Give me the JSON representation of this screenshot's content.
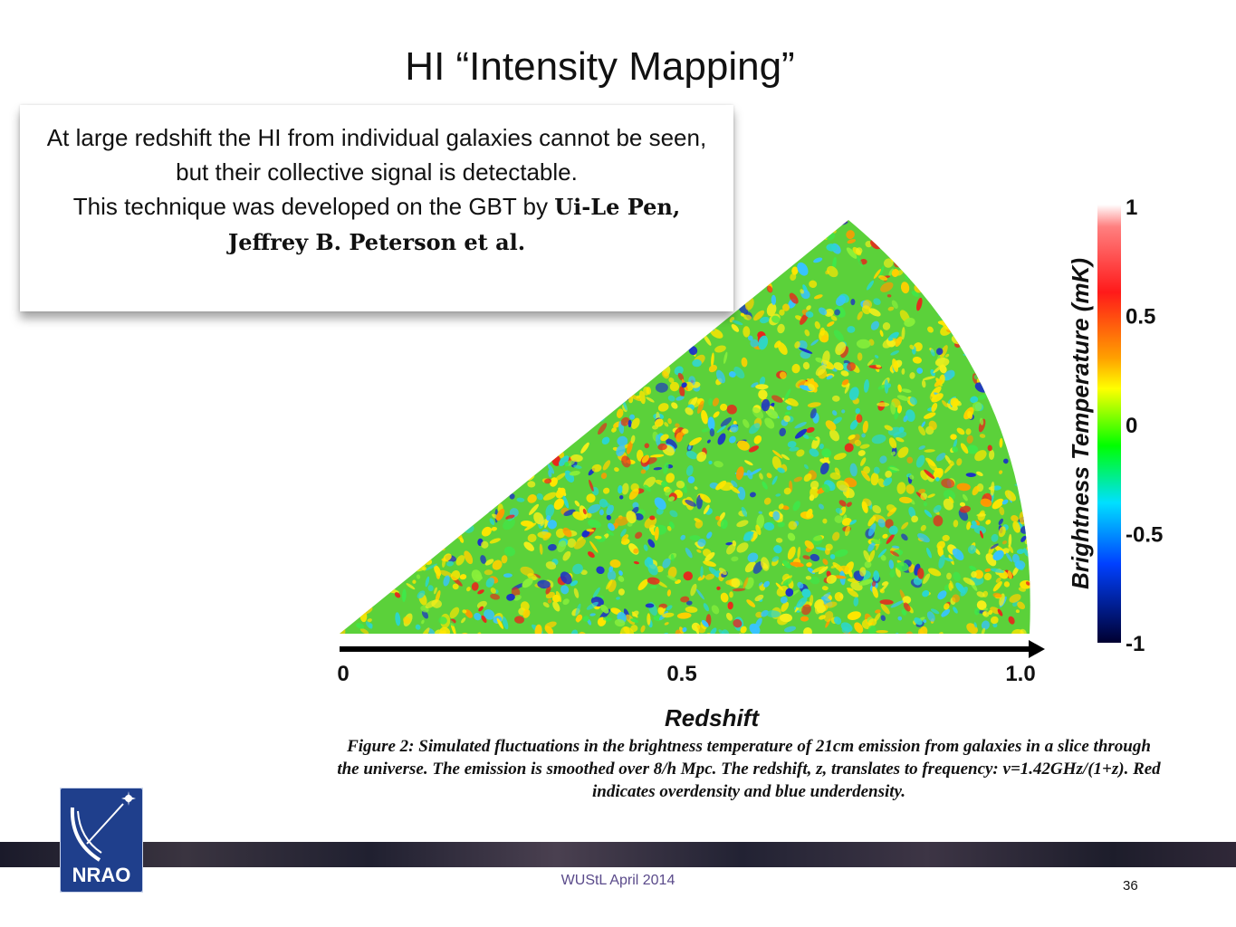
{
  "slide": {
    "title": "HI “Intensity Mapping”",
    "callout": {
      "text": "At large redshift the HI from individual galaxies cannot be seen, but their collective signal is detectable.",
      "text2": "This technique was developed on the GBT by",
      "authors": "Ui-Le Pen, Jeffrey B.  Peterson et al."
    },
    "caption": "Figure 2: Simulated fluctuations in the brightness temperature of 21cm emission from galaxies in a slice through the universe.  The emission is smoothed over 8/h Mpc.  The redshift, z, translates to frequency: ν=1.42GHz/(1+z).  Red indicates overdensity and blue underdensity.",
    "footer": "WUStL April 2014",
    "page_number": "36",
    "logo_text": "NRAO"
  },
  "chart_data": {
    "type": "heatmap",
    "xlabel": "Redshift",
    "x_ticks": [
      "0",
      "0.5",
      "1.0"
    ],
    "xlim": [
      0,
      1.0
    ],
    "colorbar": {
      "label": "Brightness Temperature (mK)",
      "ticks": [
        "1",
        "0.5",
        "0",
        "-0.5",
        "-1"
      ],
      "range": [
        -1,
        1
      ],
      "colors": [
        "#ffffff",
        "#ff0000",
        "#ffff00",
        "#00ff00",
        "#00ffff",
        "#0000ff",
        "#000033"
      ]
    }
  },
  "colors": {
    "field_background": "#5bd13a",
    "overdensity": "#e8261c",
    "underdensity": "#1b2fc8"
  }
}
